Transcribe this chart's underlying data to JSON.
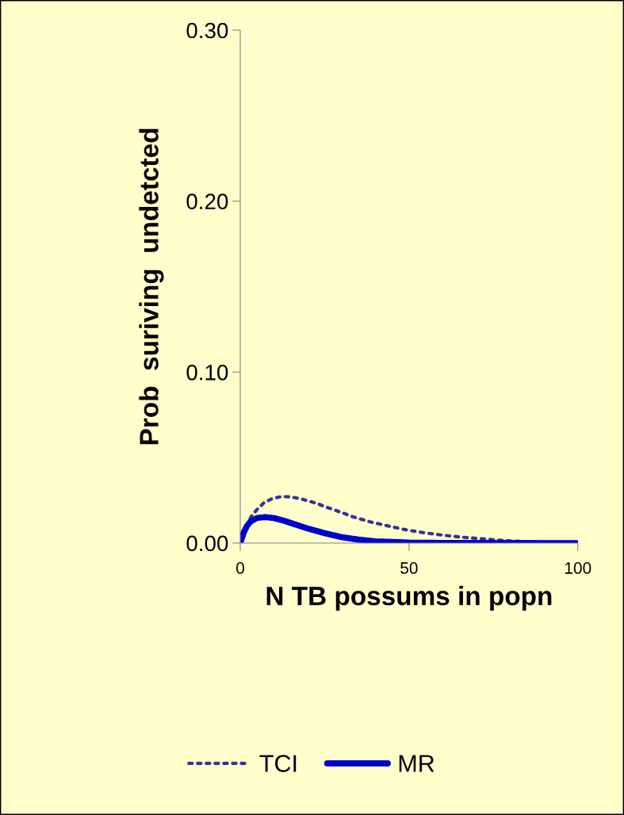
{
  "chart_data": {
    "type": "line",
    "xlabel": "N TB possums in popn",
    "ylabel": "Prob  suriving  undetcted",
    "xlim": [
      0,
      100
    ],
    "xticks": [
      0,
      50,
      100
    ],
    "ylim": [
      0,
      0.3
    ],
    "yticks": [
      {
        "value": 0,
        "label": "0.00"
      },
      {
        "value": 0.1,
        "label": "0.10"
      },
      {
        "value": 0.2,
        "label": "0.20"
      },
      {
        "value": 0.3,
        "label": "0.30"
      }
    ],
    "grid": false,
    "legend": "bottom",
    "series": [
      {
        "name": "TCI",
        "color": "#333399",
        "line_style": "dotted",
        "x": [
          0,
          1,
          2,
          3.2,
          5,
          7,
          9.5,
          12.2,
          14.9,
          17.6,
          20.3,
          23,
          25.5,
          28.1,
          30.8,
          33.3,
          38.7,
          44,
          49.4,
          54.9,
          60.4,
          65.9,
          71.4,
          80,
          90,
          100
        ],
        "values": [
          0,
          0.005,
          0.01,
          0.0154,
          0.0197,
          0.0235,
          0.026,
          0.0272,
          0.027,
          0.026,
          0.0246,
          0.0229,
          0.021,
          0.0192,
          0.0173,
          0.0154,
          0.0123,
          0.0099,
          0.0076,
          0.0059,
          0.0045,
          0.0034,
          0.0025,
          0.0012,
          0.0004,
          0.0001
        ]
      },
      {
        "name": "MR",
        "color": "#0000cc",
        "line_style": "solid",
        "x": [
          0,
          1,
          2,
          3,
          5,
          7.5,
          10,
          13,
          16,
          20,
          25,
          30,
          35,
          40,
          50,
          60,
          100
        ],
        "values": [
          0,
          0.006,
          0.01,
          0.0125,
          0.0147,
          0.0152,
          0.0146,
          0.013,
          0.011,
          0.0085,
          0.0058,
          0.0035,
          0.002,
          0.001,
          0.0003,
          0.0001,
          0
        ]
      }
    ]
  }
}
